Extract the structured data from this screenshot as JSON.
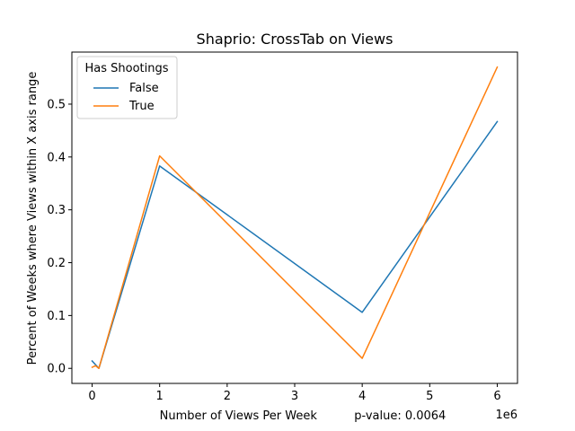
{
  "chart_data": {
    "type": "line",
    "title": "Shaprio: CrossTab on Views",
    "xlabel": "Number of Views Per Week          p-value: 0.0064",
    "ylabel": "Percent of Weeks where Views within X axis range",
    "x_offset_label": "1e6",
    "xlim": [
      -300000,
      6300000
    ],
    "ylim": [
      -0.0285,
      0.5985
    ],
    "x_ticks": [
      0,
      1000000,
      2000000,
      3000000,
      4000000,
      5000000,
      6000000
    ],
    "x_tick_labels": [
      "0",
      "1",
      "2",
      "3",
      "4",
      "5",
      "6"
    ],
    "y_ticks": [
      0.0,
      0.1,
      0.2,
      0.3,
      0.4,
      0.5
    ],
    "y_tick_labels": [
      "0.0",
      "0.1",
      "0.2",
      "0.3",
      "0.4",
      "0.5"
    ],
    "legend": {
      "title": "Has Shootings",
      "position": "upper-left"
    },
    "series": [
      {
        "name": "False",
        "color": "#1f77b4",
        "points": [
          [
            0,
            0.014
          ],
          [
            100000,
            0.0
          ],
          [
            1000000,
            0.383
          ],
          [
            4000000,
            0.106
          ],
          [
            6000000,
            0.467
          ]
        ]
      },
      {
        "name": "True",
        "color": "#ff7f0e",
        "points": [
          [
            0,
            0.002
          ],
          [
            50000,
            0.005
          ],
          [
            100000,
            0.0
          ],
          [
            1000000,
            0.402
          ],
          [
            4000000,
            0.019
          ],
          [
            6000000,
            0.57
          ]
        ]
      }
    ]
  }
}
